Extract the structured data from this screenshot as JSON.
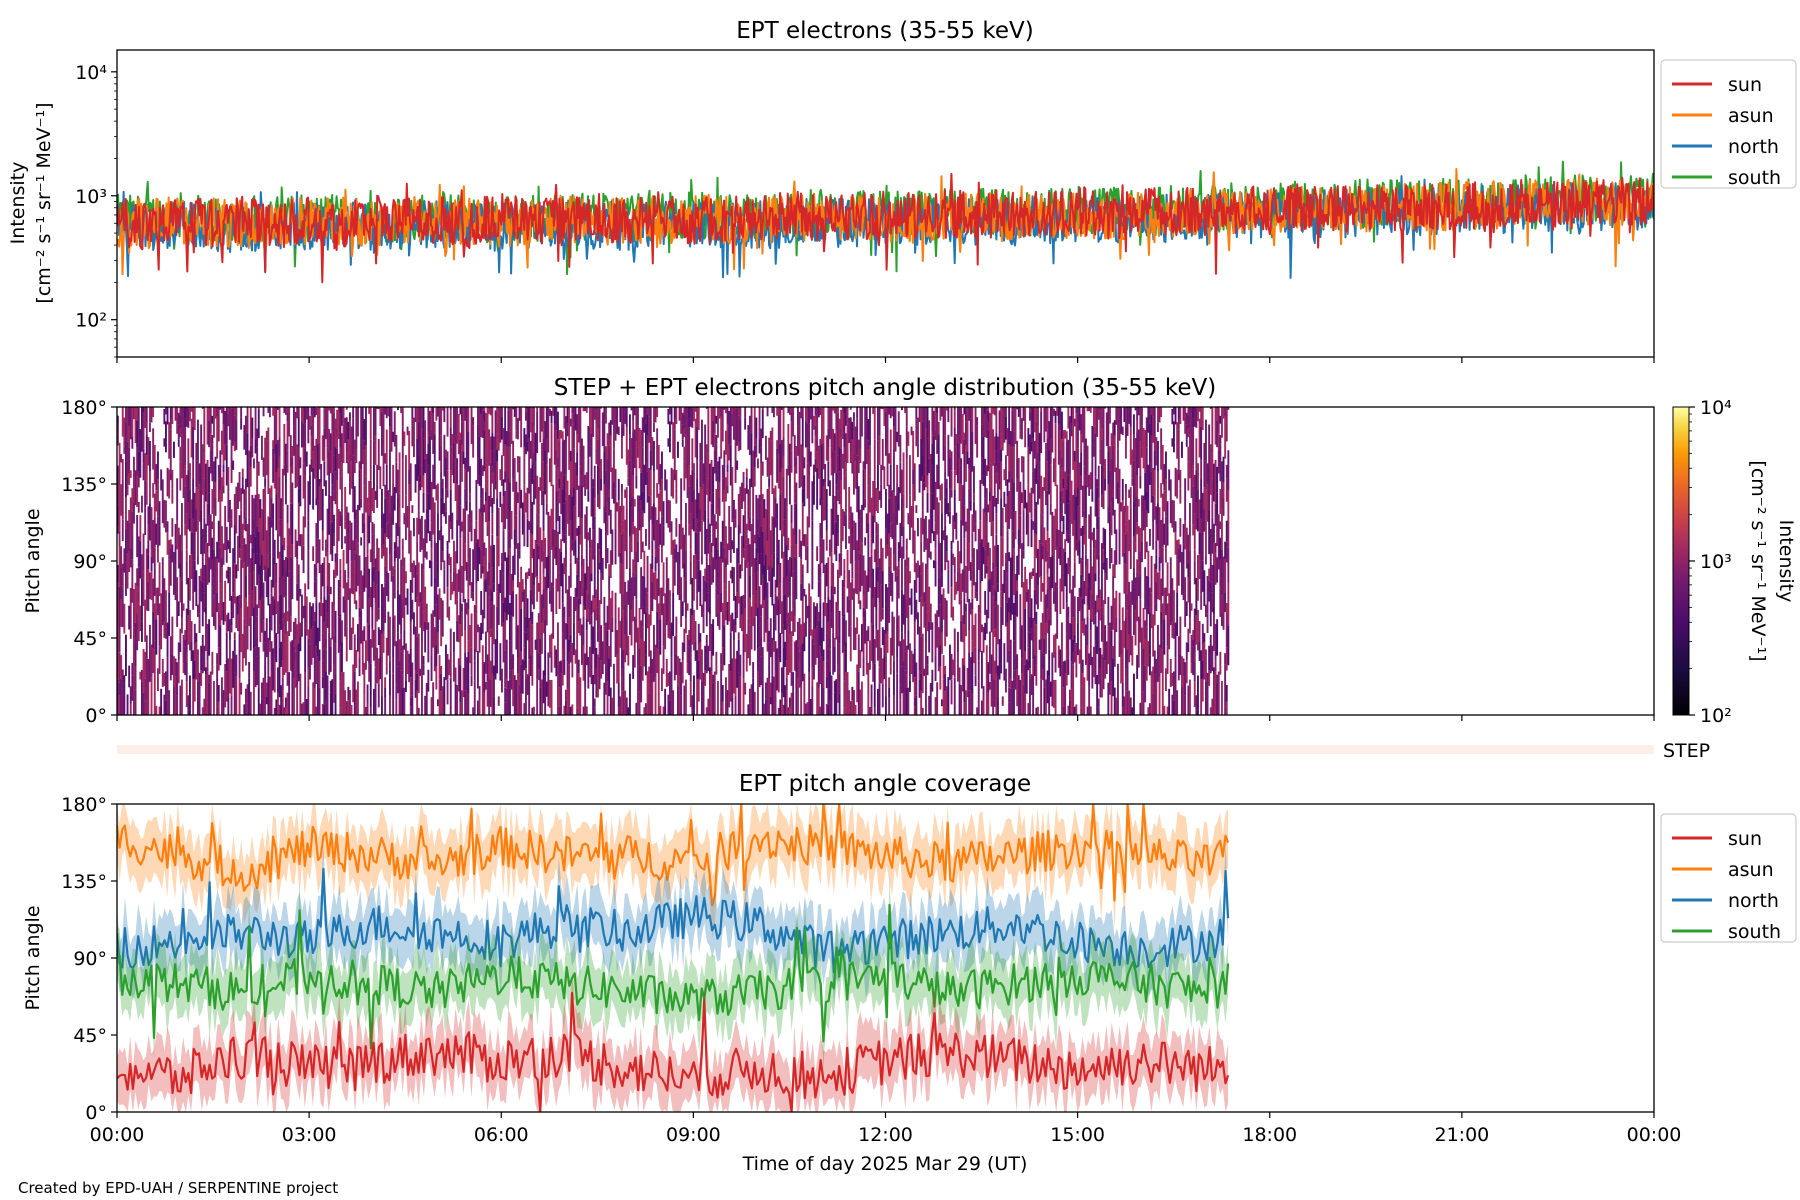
{
  "figure": {
    "credit": "Created by EPD-UAH / SERPENTINE project",
    "xlabel": "Time of day 2025 Mar 29 (UT)",
    "x_ticks": [
      "00:00",
      "03:00",
      "06:00",
      "09:00",
      "12:00",
      "15:00",
      "18:00",
      "21:00",
      "00:00"
    ],
    "x_range_hours": [
      0,
      24
    ],
    "colors": {
      "sun": "#d62728",
      "asun": "#ff7f0e",
      "north": "#1f77b4",
      "south": "#2ca02c"
    }
  },
  "chart_data": [
    {
      "id": "intensity",
      "type": "line",
      "title": "EPT electrons (35-55 keV)",
      "ylabel": [
        "Intensity",
        "[cm⁻² s⁻¹ sr⁻¹ MeV⁻¹]"
      ],
      "yscale": "log",
      "ylim": [
        50,
        15000
      ],
      "y_ticks": [
        {
          "value": 100,
          "label": "10²"
        },
        {
          "value": 1000,
          "label": "10³"
        },
        {
          "value": 10000,
          "label": "10⁴"
        }
      ],
      "legend": {
        "placement": "outside upper-right",
        "entries": [
          "sun",
          "asun",
          "north",
          "south"
        ]
      },
      "series": [
        {
          "name": "sun",
          "x": [
            0,
            0.5,
            1,
            1.5,
            2,
            2.5,
            3,
            3.5,
            4,
            4.5,
            5,
            5.5,
            6,
            6.5,
            7,
            7.5,
            8,
            8.5,
            9,
            9.5,
            10,
            10.5,
            11,
            11.5,
            12,
            12.5,
            13,
            13.5,
            14,
            14.5,
            15,
            15.5,
            16,
            16.5,
            17,
            17.5,
            18,
            18.5,
            19,
            19.5,
            20,
            20.5,
            21,
            21.5,
            22,
            22.5,
            23,
            23.5,
            24
          ],
          "values": [
            620,
            560,
            700,
            590,
            640,
            610,
            660,
            590,
            680,
            620,
            640,
            600,
            690,
            640,
            610,
            670,
            640,
            700,
            620,
            660,
            640,
            710,
            650,
            690,
            700,
            660,
            720,
            680,
            740,
            690,
            760,
            700,
            730,
            770,
            710,
            780,
            740,
            800,
            760,
            830,
            790,
            810,
            850,
            790,
            870,
            830,
            860,
            900,
            880
          ]
        },
        {
          "name": "asun",
          "x": [
            0,
            1,
            2,
            3,
            4,
            5,
            6,
            7,
            8,
            9,
            10,
            11,
            12,
            13,
            14,
            15,
            16,
            17,
            18,
            19,
            20,
            21,
            22,
            23,
            24
          ],
          "values": [
            600,
            640,
            580,
            630,
            610,
            650,
            600,
            640,
            620,
            660,
            630,
            670,
            650,
            690,
            670,
            710,
            690,
            740,
            760,
            780,
            800,
            830,
            850,
            880,
            900
          ]
        },
        {
          "name": "north",
          "x": [
            0,
            1,
            2,
            3,
            4,
            5,
            6,
            7,
            8,
            9,
            10,
            11,
            12,
            13,
            14,
            15,
            16,
            17,
            18,
            19,
            20,
            21,
            22,
            23,
            24
          ],
          "values": [
            560,
            580,
            540,
            570,
            560,
            590,
            560,
            580,
            570,
            600,
            580,
            610,
            600,
            630,
            620,
            650,
            640,
            680,
            700,
            720,
            740,
            770,
            790,
            820,
            840
          ]
        },
        {
          "name": "south",
          "x": [
            0,
            1,
            2,
            3,
            4,
            5,
            6,
            7,
            8,
            9,
            10,
            11,
            12,
            13,
            14,
            15,
            16,
            17,
            18,
            19,
            20,
            21,
            22,
            23,
            24
          ],
          "values": [
            650,
            680,
            620,
            660,
            640,
            690,
            650,
            680,
            660,
            700,
            670,
            720,
            690,
            740,
            720,
            760,
            740,
            800,
            820,
            850,
            880,
            900,
            930,
            960,
            980
          ]
        }
      ]
    },
    {
      "id": "pad",
      "type": "heatmap",
      "title": "STEP + EPT electrons pitch angle distribution (35-55 keV)",
      "ylabel": "Pitch angle",
      "ylim": [
        0,
        180
      ],
      "y_ticks": [
        "0°",
        "45°",
        "90°",
        "135°",
        "180°"
      ],
      "data_x_range_hours": [
        0,
        17.35
      ],
      "colorbar": {
        "label": [
          "Intensity",
          "[cm⁻² s⁻¹ sr⁻¹ MeV⁻¹]"
        ],
        "scale": "log",
        "range": [
          100,
          10000
        ],
        "ticks": [
          {
            "value": 100,
            "label": "10²"
          },
          {
            "value": 1000,
            "label": "10³"
          },
          {
            "value": 10000,
            "label": "10⁴"
          }
        ],
        "colormap": "inferno"
      }
    },
    {
      "id": "step",
      "type": "heatmap",
      "label": "STEP"
    },
    {
      "id": "coverage",
      "type": "line",
      "title": "EPT pitch angle coverage",
      "ylabel": "Pitch angle",
      "ylim": [
        0,
        180
      ],
      "y_ticks": [
        "0°",
        "45°",
        "90°",
        "135°",
        "180°"
      ],
      "legend": {
        "placement": "outside upper-right",
        "entries": [
          "sun",
          "asun",
          "north",
          "south"
        ]
      },
      "series": [
        {
          "name": "sun",
          "x": [
            0,
            1,
            2,
            3,
            4,
            5,
            6,
            7,
            8,
            9,
            10,
            11,
            12,
            13,
            14,
            15,
            16,
            17,
            17.35
          ],
          "values": [
            25,
            20,
            35,
            25,
            30,
            35,
            30,
            35,
            25,
            20,
            25,
            20,
            30,
            35,
            30,
            25,
            30,
            25,
            25
          ]
        },
        {
          "name": "asun",
          "x": [
            0,
            1,
            2,
            3,
            4,
            5,
            6,
            7,
            8,
            9,
            10,
            11,
            12,
            13,
            14,
            15,
            16,
            17,
            17.35
          ],
          "values": [
            160,
            150,
            140,
            155,
            150,
            145,
            155,
            150,
            150,
            145,
            160,
            155,
            150,
            145,
            150,
            155,
            150,
            145,
            150
          ]
        },
        {
          "name": "north",
          "x": [
            0,
            1,
            2,
            3,
            4,
            5,
            6,
            7,
            8,
            9,
            10,
            11,
            12,
            13,
            14,
            15,
            16,
            17,
            17.35
          ],
          "values": [
            95,
            100,
            105,
            100,
            110,
            105,
            100,
            110,
            105,
            115,
            110,
            95,
            100,
            105,
            110,
            100,
            95,
            100,
            105
          ]
        },
        {
          "name": "south",
          "x": [
            0,
            1,
            2,
            3,
            4,
            5,
            6,
            7,
            8,
            9,
            10,
            11,
            12,
            13,
            14,
            15,
            16,
            17,
            17.35
          ],
          "values": [
            80,
            75,
            70,
            80,
            75,
            70,
            80,
            75,
            70,
            65,
            70,
            75,
            80,
            70,
            75,
            80,
            75,
            70,
            75
          ]
        }
      ]
    }
  ]
}
